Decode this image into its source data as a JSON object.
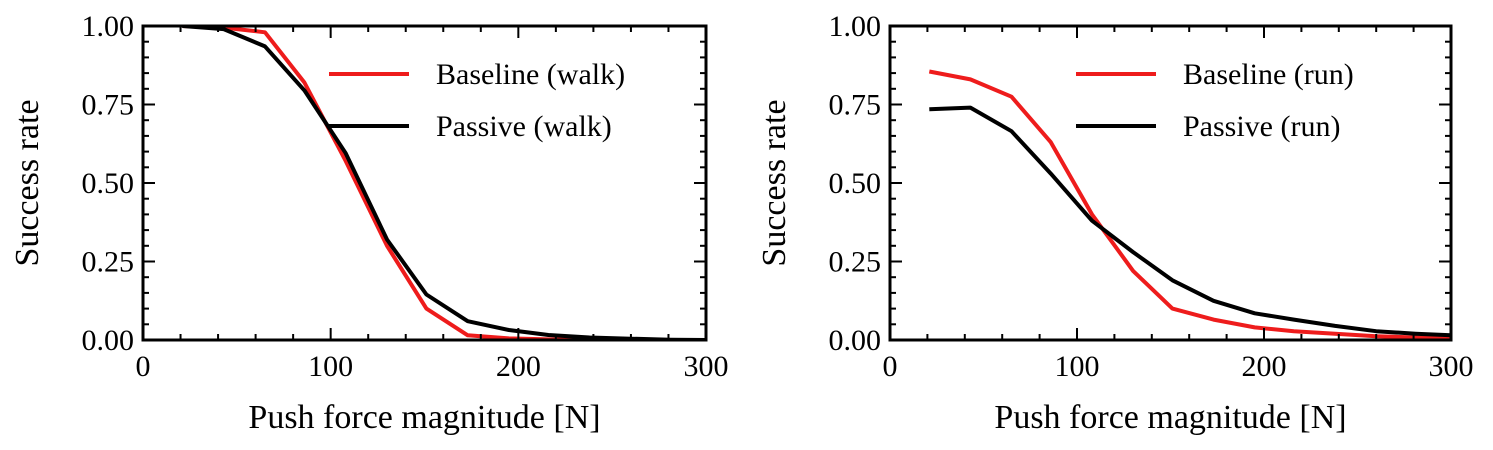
{
  "chart_data": [
    {
      "type": "line",
      "xlabel": "Push force magnitude [N]",
      "ylabel": "Success rate",
      "xlim": [
        0,
        300
      ],
      "ylim": [
        0,
        1
      ],
      "xticks": [
        "0",
        "100",
        "200",
        "300"
      ],
      "yticks": [
        "0.00",
        "0.25",
        "0.50",
        "0.75",
        "1.00"
      ],
      "legend_position": "top-right",
      "grid": false,
      "series": [
        {
          "name": "Baseline (walk)",
          "color": "#ee1c1c",
          "x": [
            21,
            43,
            65,
            86,
            108,
            130,
            151,
            173,
            195,
            216,
            238,
            260,
            281,
            300
          ],
          "y": [
            1.0,
            0.995,
            0.98,
            0.82,
            0.57,
            0.3,
            0.1,
            0.015,
            0.005,
            0.002,
            0.001,
            0.001,
            0.0,
            0.0
          ]
        },
        {
          "name": "Passive (walk)",
          "color": "#000000",
          "x": [
            21,
            43,
            65,
            86,
            108,
            130,
            151,
            173,
            195,
            216,
            238,
            260,
            281,
            300
          ],
          "y": [
            1.0,
            0.99,
            0.935,
            0.795,
            0.595,
            0.32,
            0.145,
            0.06,
            0.032,
            0.016,
            0.008,
            0.004,
            0.001,
            0.0
          ]
        }
      ]
    },
    {
      "type": "line",
      "xlabel": "Push force magnitude [N]",
      "ylabel": "Success rate",
      "xlim": [
        0,
        300
      ],
      "ylim": [
        0,
        1
      ],
      "xticks": [
        "0",
        "100",
        "200",
        "300"
      ],
      "yticks": [
        "0.00",
        "0.25",
        "0.50",
        "0.75",
        "1.00"
      ],
      "legend_position": "top-right",
      "grid": false,
      "series": [
        {
          "name": "Baseline (run)",
          "color": "#ee1c1c",
          "x": [
            21,
            43,
            65,
            86,
            108,
            130,
            151,
            173,
            195,
            216,
            238,
            260,
            281,
            300
          ],
          "y": [
            0.855,
            0.83,
            0.775,
            0.63,
            0.4,
            0.22,
            0.1,
            0.065,
            0.04,
            0.028,
            0.02,
            0.012,
            0.008,
            0.005
          ]
        },
        {
          "name": "Passive (run)",
          "color": "#000000",
          "x": [
            21,
            43,
            65,
            86,
            108,
            130,
            151,
            173,
            195,
            216,
            238,
            260,
            281,
            300
          ],
          "y": [
            0.735,
            0.74,
            0.665,
            0.53,
            0.38,
            0.28,
            0.19,
            0.125,
            0.085,
            0.065,
            0.045,
            0.028,
            0.02,
            0.015
          ]
        }
      ]
    }
  ]
}
